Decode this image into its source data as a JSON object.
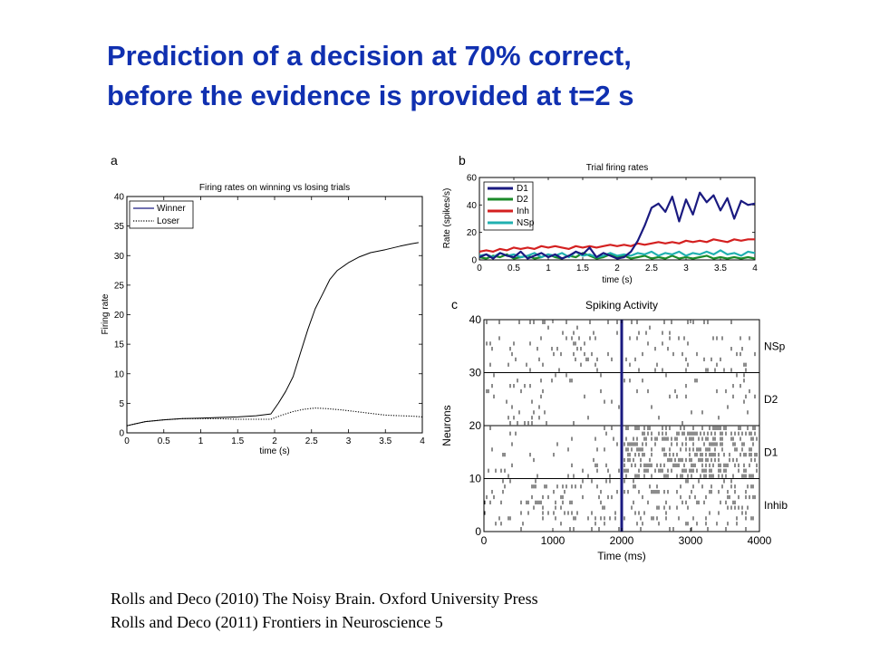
{
  "slide": {
    "title_line1": "Prediction of a decision at 70% correct,",
    "title_line2": "before the evidence is provided at t=2 s",
    "citation_1": "Rolls and Deco (2010) The Noisy Brain. Oxford University Press",
    "citation_2": "Rolls and Deco (2011) Frontiers in Neuroscience 5",
    "colors": {
      "title": "#1030b0"
    }
  },
  "chart_data": [
    {
      "panel": "a",
      "type": "line",
      "title": "Firing rates on winning vs losing trials",
      "xlabel": "time (s)",
      "ylabel": "Firing rate",
      "xlim": [
        0,
        4
      ],
      "ylim": [
        0,
        40
      ],
      "xticks": [
        "0",
        "0.5",
        "1",
        "1.5",
        "2",
        "2.5",
        "3",
        "3.5",
        "4"
      ],
      "yticks": [
        "0",
        "5",
        "10",
        "15",
        "20",
        "25",
        "30",
        "35",
        "40"
      ],
      "legend": "top-left",
      "series": [
        {
          "name": "Winner",
          "style": "solid",
          "color": "#000000",
          "x": [
            0,
            0.1,
            0.25,
            0.5,
            0.75,
            1.0,
            1.25,
            1.5,
            1.75,
            1.95,
            2.05,
            2.15,
            2.25,
            2.35,
            2.45,
            2.55,
            2.65,
            2.75,
            2.85,
            3.0,
            3.15,
            3.3,
            3.5,
            3.7,
            3.85,
            3.95
          ],
          "y": [
            1.2,
            1.5,
            1.9,
            2.2,
            2.4,
            2.5,
            2.6,
            2.7,
            2.9,
            3.2,
            5.0,
            7.0,
            9.5,
            13.5,
            17.5,
            21.0,
            23.5,
            26.0,
            27.5,
            28.8,
            29.8,
            30.5,
            31.0,
            31.6,
            32.0,
            32.2
          ]
        },
        {
          "name": "Loser",
          "style": "dotted",
          "color": "#000000",
          "x": [
            0,
            0.25,
            0.5,
            0.75,
            1.0,
            1.25,
            1.5,
            1.75,
            1.95,
            2.1,
            2.25,
            2.4,
            2.55,
            2.7,
            2.9,
            3.1,
            3.3,
            3.5,
            3.7,
            3.9,
            4.0
          ],
          "y": [
            1.2,
            1.9,
            2.2,
            2.4,
            2.4,
            2.4,
            2.3,
            2.3,
            2.3,
            3.0,
            3.6,
            4.0,
            4.2,
            4.1,
            3.9,
            3.6,
            3.3,
            3.0,
            2.9,
            2.8,
            2.7
          ]
        }
      ]
    },
    {
      "panel": "b",
      "type": "line",
      "title": "Trial firing rates",
      "xlabel": "time (s)",
      "ylabel": "Rate (spikes/s)",
      "xlim": [
        0,
        4
      ],
      "ylim": [
        0,
        60
      ],
      "xticks": [
        "0",
        "0.5",
        "1",
        "1.5",
        "2",
        "2.5",
        "3",
        "3.5",
        "4"
      ],
      "yticks": [
        "0",
        "20",
        "40",
        "60"
      ],
      "legend": "top-left",
      "series": [
        {
          "name": "D1",
          "color": "#1a1a80",
          "x": [
            0,
            0.1,
            0.2,
            0.3,
            0.4,
            0.5,
            0.6,
            0.7,
            0.8,
            0.9,
            1.0,
            1.1,
            1.2,
            1.3,
            1.4,
            1.5,
            1.6,
            1.7,
            1.8,
            1.9,
            2.0,
            2.1,
            2.2,
            2.3,
            2.4,
            2.5,
            2.6,
            2.7,
            2.8,
            2.9,
            3.0,
            3.1,
            3.2,
            3.3,
            3.4,
            3.5,
            3.6,
            3.7,
            3.8,
            3.9,
            4.0
          ],
          "y": [
            2,
            4,
            1,
            5,
            3,
            2,
            6,
            1,
            3,
            5,
            2,
            4,
            1,
            3,
            6,
            4,
            9,
            2,
            5,
            3,
            1,
            2,
            6,
            14,
            25,
            38,
            41,
            35,
            46,
            28,
            44,
            33,
            49,
            42,
            47,
            36,
            45,
            30,
            43,
            40,
            41
          ]
        },
        {
          "name": "D2",
          "color": "#1b8a2a",
          "x": [
            0,
            0.1,
            0.2,
            0.3,
            0.4,
            0.5,
            0.6,
            0.7,
            0.8,
            0.9,
            1.0,
            1.1,
            1.2,
            1.3,
            1.4,
            1.5,
            1.6,
            1.7,
            1.8,
            1.9,
            2.0,
            2.1,
            2.2,
            2.3,
            2.4,
            2.5,
            2.6,
            2.7,
            2.8,
            2.9,
            3.0,
            3.1,
            3.2,
            3.3,
            3.4,
            3.5,
            3.6,
            3.7,
            3.8,
            3.9,
            4.0
          ],
          "y": [
            2,
            1,
            3,
            2,
            4,
            1,
            2,
            3,
            1,
            2,
            4,
            2,
            1,
            3,
            2,
            5,
            3,
            1,
            2,
            4,
            2,
            3,
            1,
            2,
            3,
            1,
            2,
            1,
            3,
            1,
            2,
            1,
            2,
            3,
            1,
            2,
            1,
            2,
            1,
            2,
            1
          ]
        },
        {
          "name": "Inh",
          "color": "#d42020",
          "x": [
            0,
            0.1,
            0.2,
            0.3,
            0.4,
            0.5,
            0.6,
            0.7,
            0.8,
            0.9,
            1.0,
            1.1,
            1.2,
            1.3,
            1.4,
            1.5,
            1.6,
            1.7,
            1.8,
            1.9,
            2.0,
            2.1,
            2.2,
            2.3,
            2.4,
            2.5,
            2.6,
            2.7,
            2.8,
            2.9,
            3.0,
            3.1,
            3.2,
            3.3,
            3.4,
            3.5,
            3.6,
            3.7,
            3.8,
            3.9,
            4.0
          ],
          "y": [
            6,
            7,
            6,
            8,
            7,
            9,
            8,
            9,
            8,
            10,
            9,
            10,
            9,
            8,
            10,
            9,
            10,
            9,
            10,
            11,
            10,
            11,
            10,
            12,
            11,
            12,
            13,
            12,
            13,
            12,
            14,
            13,
            14,
            13,
            15,
            14,
            13,
            15,
            14,
            15,
            15
          ]
        },
        {
          "name": "NSp",
          "color": "#20b0b0",
          "x": [
            0,
            0.1,
            0.2,
            0.3,
            0.4,
            0.5,
            0.6,
            0.7,
            0.8,
            0.9,
            1.0,
            1.1,
            1.2,
            1.3,
            1.4,
            1.5,
            1.6,
            1.7,
            1.8,
            1.9,
            2.0,
            2.1,
            2.2,
            2.3,
            2.4,
            2.5,
            2.6,
            2.7,
            2.8,
            2.9,
            3.0,
            3.1,
            3.2,
            3.3,
            3.4,
            3.5,
            3.6,
            3.7,
            3.8,
            3.9,
            4.0
          ],
          "y": [
            3,
            4,
            2,
            5,
            3,
            4,
            2,
            3,
            5,
            2,
            4,
            3,
            5,
            2,
            6,
            3,
            4,
            2,
            3,
            5,
            3,
            4,
            3,
            5,
            4,
            6,
            3,
            5,
            4,
            6,
            3,
            5,
            4,
            6,
            4,
            7,
            4,
            5,
            3,
            6,
            5
          ]
        }
      ]
    },
    {
      "panel": "c",
      "type": "scatter",
      "title": "Spiking Activity",
      "xlabel": "Time (ms)",
      "ylabel": "Neurons",
      "xlim": [
        0,
        4000
      ],
      "ylim": [
        0,
        40
      ],
      "xticks": [
        "0",
        "1000",
        "2000",
        "3000",
        "4000"
      ],
      "yticks": [
        "0",
        "10",
        "20",
        "30",
        "40"
      ],
      "marker_line_x": 2000,
      "groups": [
        {
          "name": "Inhib",
          "neuron_range": [
            0,
            10
          ],
          "rate_before": 0.95,
          "rate_after": 1.3,
          "color": "#000000"
        },
        {
          "name": "D1",
          "neuron_range": [
            10,
            20
          ],
          "rate_before": 0.5,
          "rate_after": 3.6,
          "color": "#000000"
        },
        {
          "name": "D2",
          "neuron_range": [
            20,
            30
          ],
          "rate_before": 0.45,
          "rate_after": 0.3,
          "color": "#000000"
        },
        {
          "name": "NSp",
          "neuron_range": [
            30,
            40
          ],
          "rate_before": 0.55,
          "rate_after": 0.55,
          "color": "#000000"
        }
      ]
    }
  ]
}
